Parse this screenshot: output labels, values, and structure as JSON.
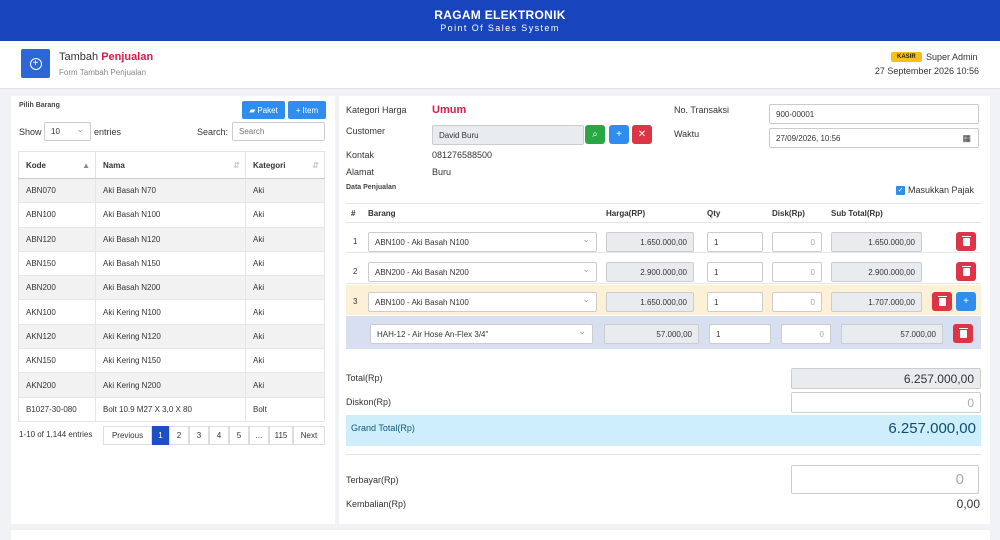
{
  "app": {
    "title": "RAGAM ELEKTRONIK",
    "subtitle": "Point Of Sales System"
  },
  "page": {
    "title_prefix": "Tambah",
    "title_highlight": "Penjualan",
    "subtitle": "Form Tambah Penjualan"
  },
  "user": {
    "role_badge": "KASIR",
    "name": "Super Admin",
    "datetime": "27 September 2026 10:56"
  },
  "left": {
    "section": "Pilih Barang",
    "paket_label": "Paket",
    "item_label": "Item",
    "show_label": "Show",
    "entries_value": "10",
    "entries_label": "entries",
    "search_label": "Search:",
    "search_placeholder": "Search",
    "columns": [
      "Kode",
      "Nama",
      "Kategori"
    ],
    "rows": [
      [
        "ABN070",
        "Aki Basah N70",
        "Aki"
      ],
      [
        "ABN100",
        "Aki Basah N100",
        "Aki"
      ],
      [
        "ABN120",
        "Aki Basah N120",
        "Aki"
      ],
      [
        "ABN150",
        "Aki Basah N150",
        "Aki"
      ],
      [
        "ABN200",
        "Aki Basah N200",
        "Aki"
      ],
      [
        "AKN100",
        "Aki Kering N100",
        "Aki"
      ],
      [
        "AKN120",
        "Aki Kering N120",
        "Aki"
      ],
      [
        "AKN150",
        "Aki Kering N150",
        "Aki"
      ],
      [
        "AKN200",
        "Aki Kering N200",
        "Aki"
      ],
      [
        "B1027-30-080",
        "Bolt 10.9 M27 X 3,0 X 80",
        "Bolt"
      ]
    ],
    "info": "1-10 of 1,144 entries",
    "pages": [
      "Previous",
      "1",
      "2",
      "3",
      "4",
      "5",
      "...",
      "115",
      "Next"
    ]
  },
  "form": {
    "kategori_label": "Kategori Harga",
    "kategori_value": "Umum",
    "customer_label": "Customer",
    "customer_value": "David Buru",
    "kontak_label": "Kontak",
    "kontak_value": "081276588500",
    "alamat_label": "Alamat",
    "alamat_value": "Buru",
    "notrans_label": "No. Transaksi",
    "notrans_value": "900-00001",
    "waktu_label": "Waktu",
    "waktu_value": "27/09/2026, 10:56"
  },
  "sales": {
    "section": "Data Penjualan",
    "pajak_label": "Masukkan Pajak",
    "columns": {
      "no": "#",
      "barang": "Barang",
      "harga": "Harga(RP)",
      "qty": "Qty",
      "disk": "Disk(Rp)",
      "subtotal": "Sub Total(Rp)"
    },
    "rows": [
      {
        "no": "1",
        "barang": "ABN100 - Aki Basah N100",
        "harga": "1.650.000,00",
        "qty": "1",
        "disk": "0",
        "subtotal": "1.650.000,00"
      },
      {
        "no": "2",
        "barang": "ABN200 - Aki Basah N200",
        "harga": "2.900.000,00",
        "qty": "1",
        "disk": "0",
        "subtotal": "2.900.000,00"
      },
      {
        "no": "3",
        "barang": "ABN100 - Aki Basah N100",
        "harga": "1.650.000,00",
        "qty": "1",
        "disk": "0",
        "subtotal": "1.707.000,00"
      }
    ],
    "subrow": {
      "barang": "HAH-12 - Air Hose An-Flex 3/4\"",
      "harga": "57.000,00",
      "qty": "1",
      "disk": "0",
      "subtotal": "57.000,00"
    }
  },
  "totals": {
    "total_label": "Total(Rp)",
    "total_value": "6.257.000,00",
    "diskon_label": "Diskon(Rp)",
    "diskon_value": "0",
    "grand_label": "Grand Total(Rp)",
    "grand_value": "6.257.000,00",
    "terbayar_label": "Terbayar(Rp)",
    "terbayar_value": "0",
    "kembalian_label": "Kembalian(Rp)",
    "kembalian_value": "0,00"
  }
}
